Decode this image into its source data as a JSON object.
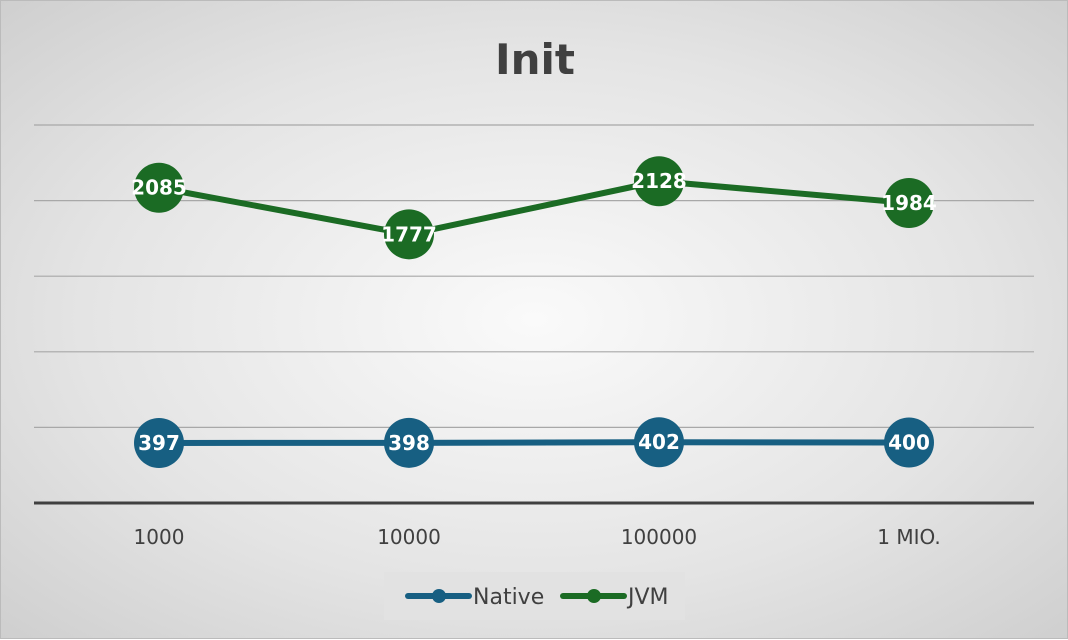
{
  "chart_data": {
    "type": "line",
    "title": "Init",
    "categories": [
      "1000",
      "10000",
      "100000",
      "1 MIO."
    ],
    "series": [
      {
        "name": "Native",
        "values": [
          397,
          398,
          402,
          400
        ],
        "color": "#175f82"
      },
      {
        "name": "JVM",
        "values": [
          2085,
          1777,
          2128,
          1984
        ],
        "color": "#1b6b24"
      }
    ],
    "xlabel": "",
    "ylabel": "",
    "ylim": [
      0,
      2500
    ],
    "grid_step": 500,
    "grid": true,
    "legend": "bottom",
    "data_labels": true
  }
}
